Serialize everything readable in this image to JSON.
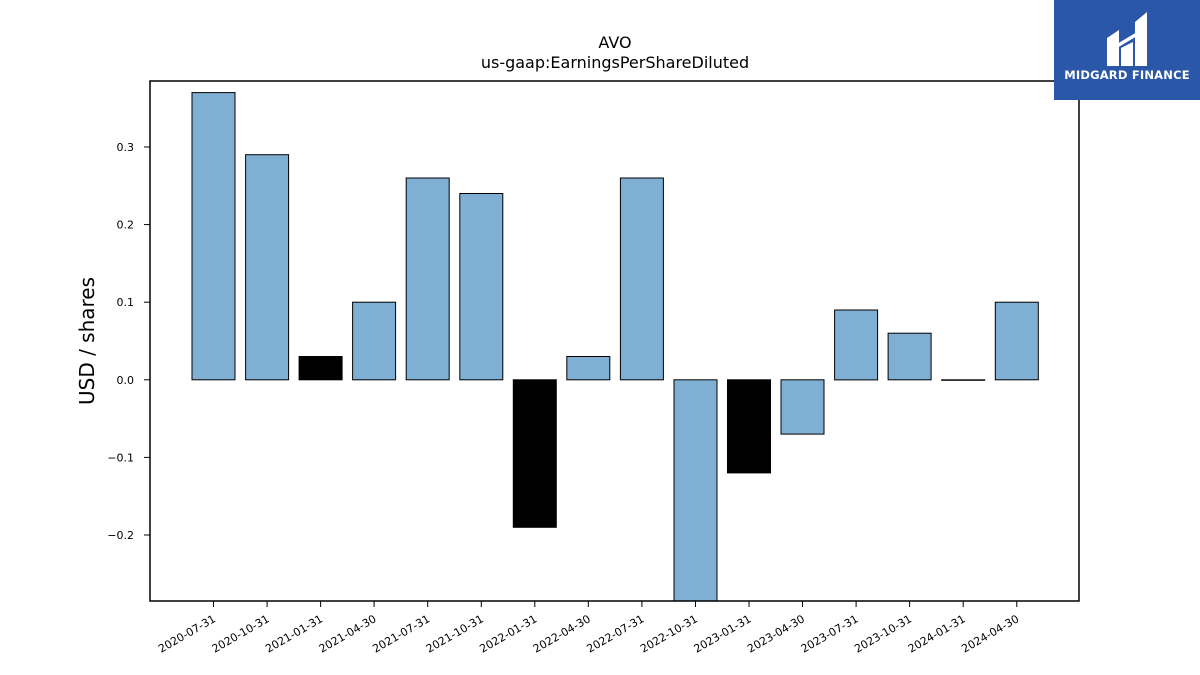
{
  "chart_data": {
    "type": "bar",
    "title": "AVO",
    "subtitle": "us-gaap:EarningsPerShareDiluted",
    "xlabel": "",
    "ylabel": "USD / shares",
    "ylim": [
      -0.285,
      0.385
    ],
    "yticks": [
      -0.2,
      -0.1,
      0.0,
      0.1,
      0.2,
      0.3
    ],
    "ytick_labels": [
      "−0.2",
      "−0.1",
      "0.0",
      "0.1",
      "0.2",
      "0.3"
    ],
    "grid": false,
    "categories": [
      "2020-07-31",
      "2020-10-31",
      "2021-01-31",
      "2021-04-30",
      "2021-07-31",
      "2021-10-31",
      "2022-01-31",
      "2022-04-30",
      "2022-07-31",
      "2022-10-31",
      "2023-01-31",
      "2023-04-30",
      "2023-07-31",
      "2023-10-31",
      "2024-01-31",
      "2024-04-30"
    ],
    "values": [
      0.37,
      0.29,
      0.03,
      0.1,
      0.26,
      0.24,
      -0.19,
      0.03,
      0.26,
      -0.3,
      -0.12,
      -0.07,
      0.09,
      0.06,
      0.0,
      0.1
    ],
    "bar_colors": [
      "#7fb0d4",
      "#7fb0d4",
      "#000000",
      "#7fb0d4",
      "#7fb0d4",
      "#7fb0d4",
      "#000000",
      "#7fb0d4",
      "#7fb0d4",
      "#7fb0d4",
      "#000000",
      "#7fb0d4",
      "#7fb0d4",
      "#7fb0d4",
      "#7fb0d4",
      "#7fb0d4"
    ]
  },
  "logo": {
    "text": "MIDGARD FINANCE",
    "background": "#2b57a8",
    "icon": "midgard-logo-icon"
  }
}
